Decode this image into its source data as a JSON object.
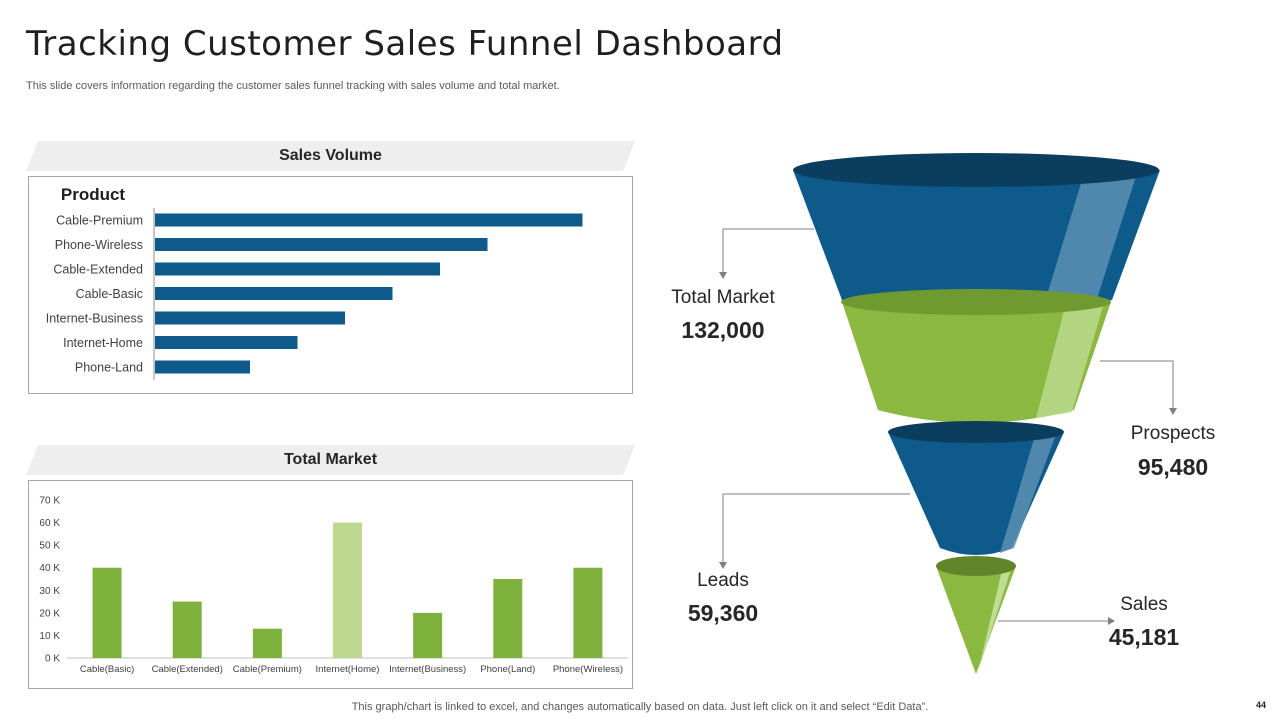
{
  "slide": {
    "title": "Tracking Customer Sales Funnel Dashboard",
    "subtitle": "This slide covers information regarding the customer sales funnel tracking with sales volume and total market.",
    "footer": "This graph/chart is linked to excel,  and changes automatically based on data. Just left click on it and select “Edit Data”.",
    "page_number": "44"
  },
  "panels": {
    "sales_volume_header": "Sales Volume",
    "total_market_header": "Total Market"
  },
  "chart_data": [
    {
      "type": "bar",
      "orientation": "horizontal",
      "title": "Sales Volume",
      "category_header": "Product",
      "categories": [
        "Cable-Premium",
        "Phone-Wireless",
        "Cable-Extended",
        "Cable-Basic",
        "Internet-Business",
        "Internet-Home",
        "Phone-Land"
      ],
      "values": [
        90,
        70,
        60,
        50,
        40,
        30,
        20
      ],
      "xlim": [
        0,
        100
      ],
      "grid": false,
      "colors": [
        "#0e5a8a"
      ]
    },
    {
      "type": "bar",
      "title": "Total Market",
      "categories": [
        "Cable(Basic)",
        "Cable(Extended)",
        "Cable(Premium)",
        "Internet(Home)",
        "Internet(Business)",
        "Phone(Land)",
        "Phone(Wireless)"
      ],
      "values": [
        40000,
        25000,
        13000,
        60000,
        20000,
        35000,
        40000
      ],
      "highlight_index": 3,
      "yticks": [
        "0 K",
        "10 K",
        "20 K",
        "30 K",
        "40 K",
        "50 K",
        "60 K",
        "70 K"
      ],
      "ylim": [
        0,
        70000
      ],
      "grid": false,
      "colors": [
        "#7fb23d",
        "#bdd88f"
      ]
    }
  ],
  "funnel": {
    "stages": [
      {
        "label": "Total Market",
        "value": "132,000",
        "color": "#0e5a8a"
      },
      {
        "label": "Prospects",
        "value": "95,480",
        "color": "#8ab840"
      },
      {
        "label": "Leads",
        "value": "59,360",
        "color": "#0e5a8a"
      },
      {
        "label": "Sales",
        "value": "45,181",
        "color": "#8ab840"
      }
    ]
  }
}
